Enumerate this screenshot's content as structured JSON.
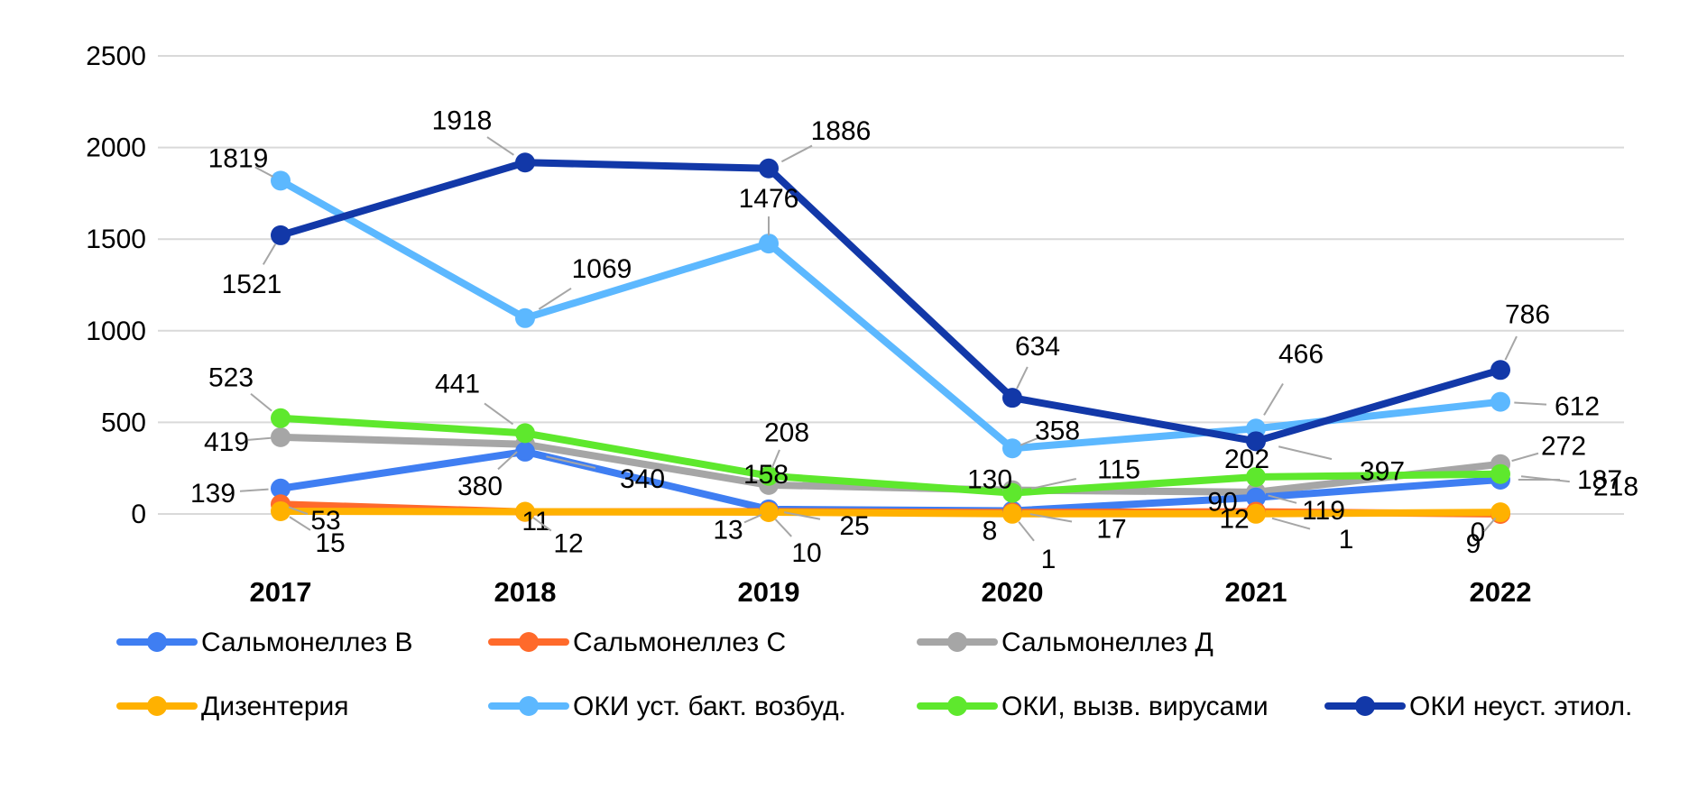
{
  "chart_data": {
    "type": "line",
    "title": "",
    "xlabel": "",
    "ylabel": "",
    "ylim": [
      0,
      2500
    ],
    "yticks": [
      0,
      500,
      1000,
      1500,
      2000,
      2500
    ],
    "grid": true,
    "legend_position": "bottom",
    "categories": [
      "2017",
      "2018",
      "2019",
      "2020",
      "2021",
      "2022"
    ],
    "series": [
      {
        "name": "Сальмонеллез В",
        "color": "#3f7ef2",
        "values": [
          139,
          340,
          25,
          17,
          90,
          187
        ],
        "labels": [
          "139",
          "340",
          "25",
          "17",
          "90",
          "187"
        ]
      },
      {
        "name": "Сальмонеллез С",
        "color": "#ff6a2b",
        "values": [
          53,
          11,
          13,
          8,
          12,
          0
        ],
        "labels": [
          "53",
          "11",
          "13",
          "8",
          "12",
          "0"
        ]
      },
      {
        "name": "Сальмонеллез Д",
        "color": "#a6a6a6",
        "values": [
          419,
          380,
          158,
          130,
          119,
          272
        ],
        "labels": [
          "419",
          "380",
          "158",
          "130",
          "119",
          "272"
        ]
      },
      {
        "name": "Дизентерия",
        "color": "#ffb100",
        "values": [
          15,
          12,
          10,
          1,
          1,
          9
        ],
        "labels": [
          "15",
          "12",
          "10",
          "1",
          "1",
          "9"
        ]
      },
      {
        "name": "ОКИ уст. бакт. возбуд.",
        "color": "#5cb8ff",
        "values": [
          1819,
          1069,
          1476,
          358,
          466,
          612
        ],
        "labels": [
          "1819",
          "1069",
          "1476",
          "358",
          "466",
          "612"
        ]
      },
      {
        "name": "ОКИ, вызв. вирусами",
        "color": "#5ee82d",
        "values": [
          523,
          441,
          208,
          115,
          202,
          218
        ],
        "labels": [
          "523",
          "441",
          "208",
          "115",
          "202",
          "218"
        ]
      },
      {
        "name": "ОКИ неуст. этиол.",
        "color": "#1238a8",
        "values": [
          1521,
          1918,
          1886,
          634,
          397,
          786
        ],
        "labels": [
          "1521",
          "1918",
          "1886",
          "634",
          "397",
          "786"
        ]
      }
    ]
  }
}
